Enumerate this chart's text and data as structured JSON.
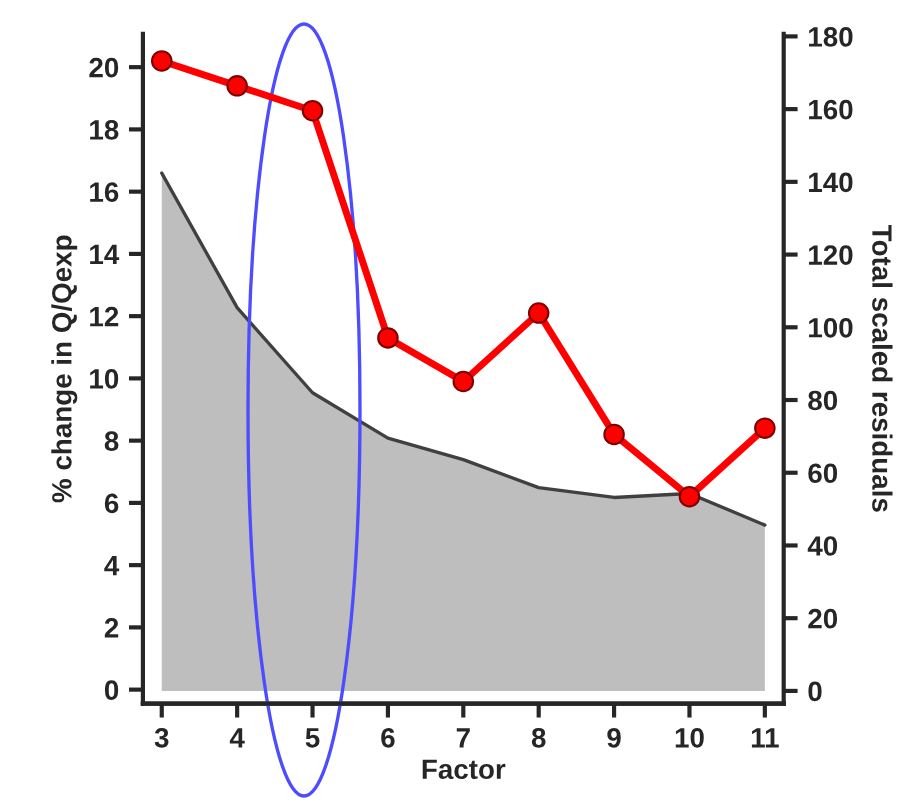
{
  "chart_data": {
    "type": "line",
    "xlabel": "Factor",
    "ylabel": "% change in Q/Qexp",
    "y2label": "Total scaled residuals",
    "x": [
      3,
      4,
      5,
      6,
      7,
      8,
      9,
      10,
      11
    ],
    "series": [
      {
        "type": "area",
        "axis": "y2",
        "marker": "none",
        "color": "#bebebe",
        "values": [
          142.4,
          105.4,
          82,
          69.5,
          63.6,
          55.9,
          53.2,
          54.3,
          45.6
        ]
      },
      {
        "color": "#ff0000",
        "values": [
          20.2,
          19.4,
          18.6,
          11.3,
          9.9,
          12.1,
          8.2,
          6.2,
          8.4
        ]
      }
    ],
    "xlim": [
      2.75,
      11.25
    ],
    "xticks": [
      3,
      4,
      5,
      6,
      7,
      8,
      9,
      10,
      11
    ],
    "ylim": [
      -0.45,
      21.07
    ],
    "yticks": [
      0,
      2,
      4,
      6,
      8,
      10,
      12,
      14,
      16,
      18,
      20
    ],
    "y2lim": [
      -3.5,
      180.7
    ],
    "y2ticks": [
      0,
      20,
      40,
      60,
      80,
      100,
      120,
      140,
      160,
      180
    ],
    "marker": "circle",
    "line_style": "solid",
    "grid": false,
    "legend": false
  }
}
